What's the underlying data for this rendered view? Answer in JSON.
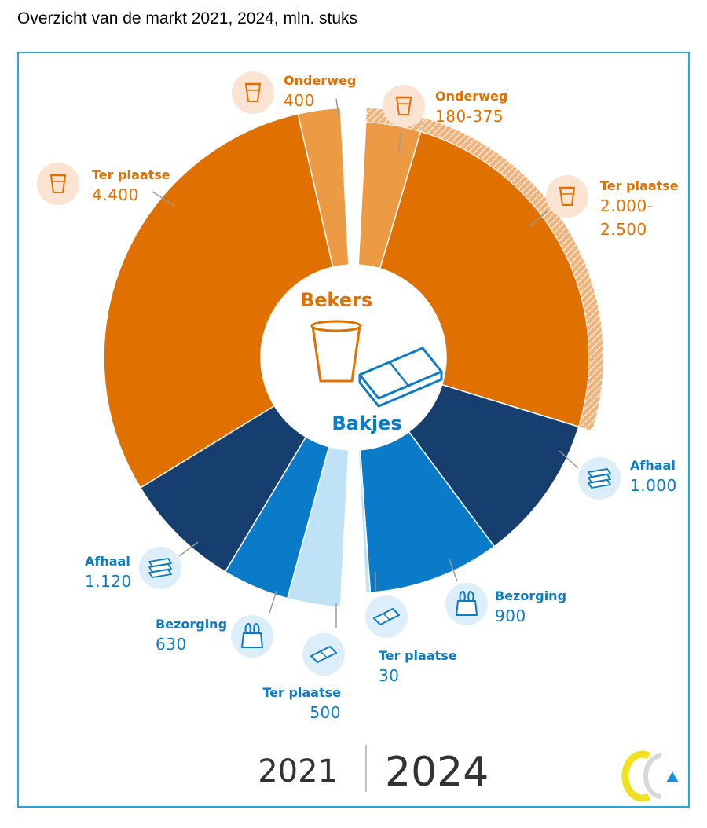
{
  "title": "Overzicht van de markt 2021, 2024, mln. stuks",
  "colors": {
    "cups_dark": "#e07000",
    "cups_light": "#ec9a44",
    "cups_bubble": "#fbe3d2",
    "trays_dark": "#163f70",
    "trays_mid": "#0a7bc8",
    "trays_light": "#bfe2f6",
    "trays_bubble": "#dceef9",
    "frame": "#2aa6d9"
  },
  "center": {
    "cups": "Bekers",
    "trays": "Bakjes"
  },
  "chart_data": {
    "type": "pie",
    "unit": "mln. stuks",
    "years": [
      "2021",
      "2024"
    ],
    "series": [
      {
        "name": "2021",
        "categories": [
          {
            "group": "Bekers",
            "label": "Onderweg",
            "value_text": "400",
            "value": 400
          },
          {
            "group": "Bekers",
            "label": "Ter plaatse",
            "value_text": "4.400",
            "value": 4400
          },
          {
            "group": "Bakjes",
            "label": "Afhaal",
            "value_text": "1.120",
            "value": 1120
          },
          {
            "group": "Bakjes",
            "label": "Bezorging",
            "value_text": "630",
            "value": 630
          },
          {
            "group": "Bakjes",
            "label": "Ter plaatse",
            "value_text": "500",
            "value": 500
          }
        ]
      },
      {
        "name": "2024",
        "categories": [
          {
            "group": "Bekers",
            "label": "Onderweg",
            "value_text": "180-375",
            "value": [
              180,
              375
            ]
          },
          {
            "group": "Bekers",
            "label": "Ter plaatse",
            "value_text": "2.000-\n2.500",
            "value": [
              2000,
              2500
            ]
          },
          {
            "group": "Bakjes",
            "label": "Afhaal",
            "value_text": "1.000",
            "value": 1000
          },
          {
            "group": "Bakjes",
            "label": "Bezorging",
            "value_text": "900",
            "value": 900
          },
          {
            "group": "Bakjes",
            "label": "Ter plaatse",
            "value_text": "30",
            "value": 30
          }
        ]
      }
    ]
  },
  "icons": {
    "onderweg": "cup-icon",
    "ter_plaatse_cup": "cup-icon",
    "afhaal": "stacked-trays-icon",
    "bezorging": "bag-icon",
    "ter_plaatse_tray": "tray-icon"
  }
}
